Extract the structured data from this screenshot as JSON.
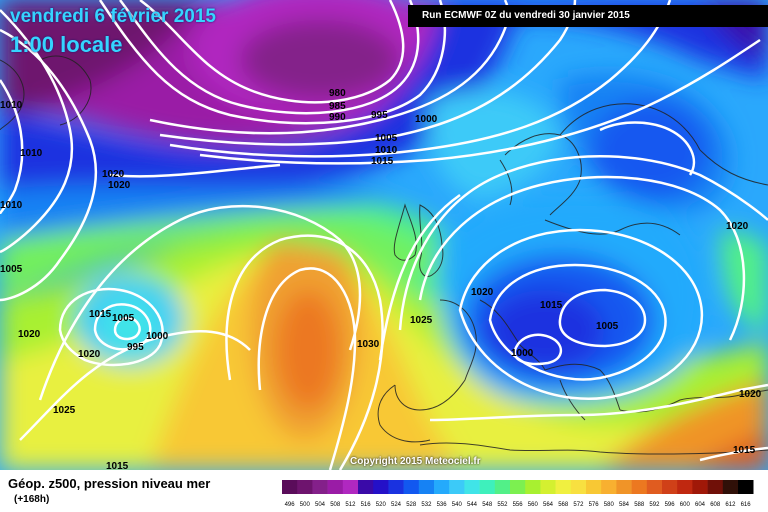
{
  "header": {
    "date_line": "vendredi 6 février 2015",
    "time_line": "1:00 locale",
    "run_info": "Run ECMWF 0Z du vendredi 30 janvier 2015"
  },
  "copyright": "Copyright 2015 Meteociel.fr",
  "footer": {
    "title": "Géop. z500, pression niveau mer",
    "subtitle": "(+168h)"
  },
  "isobar_labels": [
    {
      "text": "980"
    },
    {
      "text": "985"
    },
    {
      "text": "990"
    },
    {
      "text": "995"
    },
    {
      "text": "1000"
    },
    {
      "text": "1005"
    },
    {
      "text": "1010"
    },
    {
      "text": "1015"
    },
    {
      "text": "1010"
    },
    {
      "text": "1010"
    },
    {
      "text": "1010"
    },
    {
      "text": "1020"
    },
    {
      "text": "1020"
    },
    {
      "text": "1005"
    },
    {
      "text": "1020"
    },
    {
      "text": "1015"
    },
    {
      "text": "1005"
    },
    {
      "text": "1000"
    },
    {
      "text": "995"
    },
    {
      "text": "1020"
    },
    {
      "text": "1025"
    },
    {
      "text": "1015"
    },
    {
      "text": "1030"
    },
    {
      "text": "1025"
    },
    {
      "text": "1020"
    },
    {
      "text": "1015"
    },
    {
      "text": "1005"
    },
    {
      "text": "1000"
    },
    {
      "text": "1020"
    },
    {
      "text": "1020"
    },
    {
      "text": "1015"
    }
  ],
  "scale": {
    "values": [
      "496",
      "500",
      "504",
      "508",
      "512",
      "516",
      "520",
      "524",
      "528",
      "532",
      "536",
      "540",
      "544",
      "548",
      "552",
      "556",
      "560",
      "564",
      "568",
      "572",
      "576",
      "580",
      "584",
      "588",
      "592",
      "596",
      "600",
      "604",
      "608",
      "612",
      "616"
    ],
    "colors": [
      "#5a0c5a",
      "#6e146e",
      "#84208a",
      "#9a1ca6",
      "#b028c0",
      "#3a0aa8",
      "#2410c8",
      "#1a32e0",
      "#1258f0",
      "#1682f4",
      "#24aafc",
      "#3ccaf8",
      "#40e4e8",
      "#3ef0bc",
      "#52f088",
      "#7cf050",
      "#a8f030",
      "#d4f030",
      "#f0f040",
      "#f8e040",
      "#f8c834",
      "#f8b030",
      "#f09428",
      "#ec7820",
      "#e05c20",
      "#d04018",
      "#c02810",
      "#a01808",
      "#701008",
      "#301008",
      "#000000"
    ]
  }
}
